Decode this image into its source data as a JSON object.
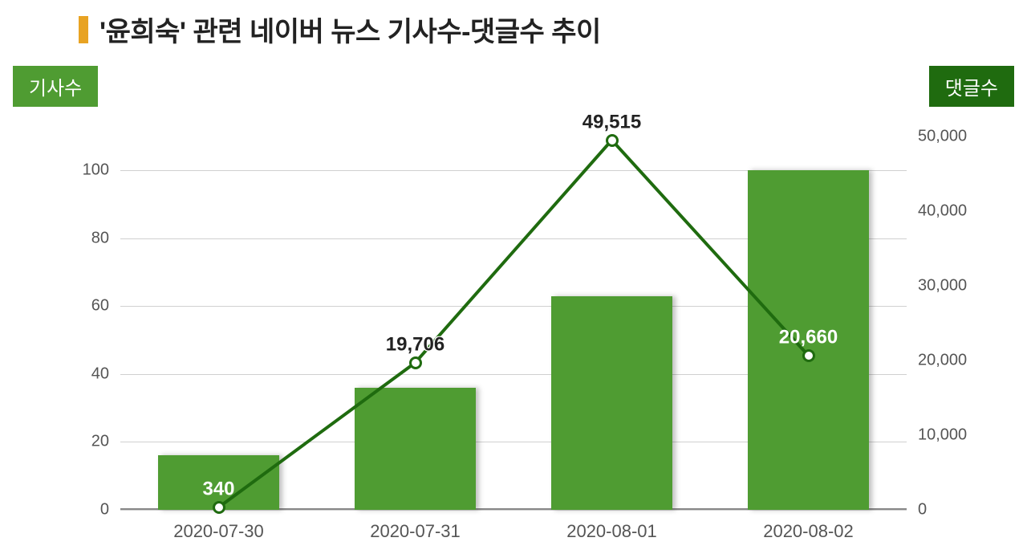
{
  "title": {
    "bullet_color": "#e8a323",
    "text": "'윤희숙' 관련 네이버 뉴스 기사수-댓글수 추이",
    "text_color": "#222222",
    "fontsize": 34
  },
  "legend": {
    "left": {
      "label": "기사수",
      "bg": "#4f9c32",
      "color": "#ffffff"
    },
    "right": {
      "label": "댓글수",
      "bg": "#1f6b0f",
      "color": "#ffffff"
    }
  },
  "chart": {
    "type": "bar+line",
    "background_color": "#ffffff",
    "grid_color": "#d0d0d0",
    "categories": [
      "2020-07-30",
      "2020-07-31",
      "2020-08-01",
      "2020-08-02"
    ],
    "bars": {
      "values": [
        16,
        36,
        63,
        100
      ],
      "color": "#4f9c32",
      "width_ratio": 0.62,
      "axis": "left",
      "shadow": true
    },
    "line": {
      "values": [
        340,
        19706,
        49515,
        20660
      ],
      "labels": [
        "340",
        "19,706",
        "49,515",
        "20,660"
      ],
      "color": "#1f6b0f",
      "width": 4,
      "marker": {
        "outer_r": 8,
        "inner_r": 4,
        "stroke": "#1f6b0f",
        "fill": "#ffffff"
      },
      "axis": "right",
      "label_color": "#222222",
      "label_color_overrides": {
        "0": "#ffffff",
        "3": "#ffffff"
      }
    },
    "axis_left": {
      "min": 0,
      "max": 110,
      "ticks": [
        0,
        20,
        40,
        60,
        80,
        100
      ],
      "tick_labels": [
        "0",
        "20",
        "40",
        "60",
        "80",
        "100"
      ],
      "label_color": "#555555",
      "label_fontsize": 20
    },
    "axis_right": {
      "min": 0,
      "max": 50000,
      "ticks": [
        0,
        10000,
        20000,
        30000,
        40000,
        50000
      ],
      "tick_labels": [
        "0",
        "10,000",
        "20,000",
        "30,000",
        "40,000",
        "50,000"
      ],
      "label_color": "#555555",
      "label_fontsize": 20
    },
    "xaxis": {
      "label_color": "#555555",
      "label_fontsize": 22
    }
  }
}
